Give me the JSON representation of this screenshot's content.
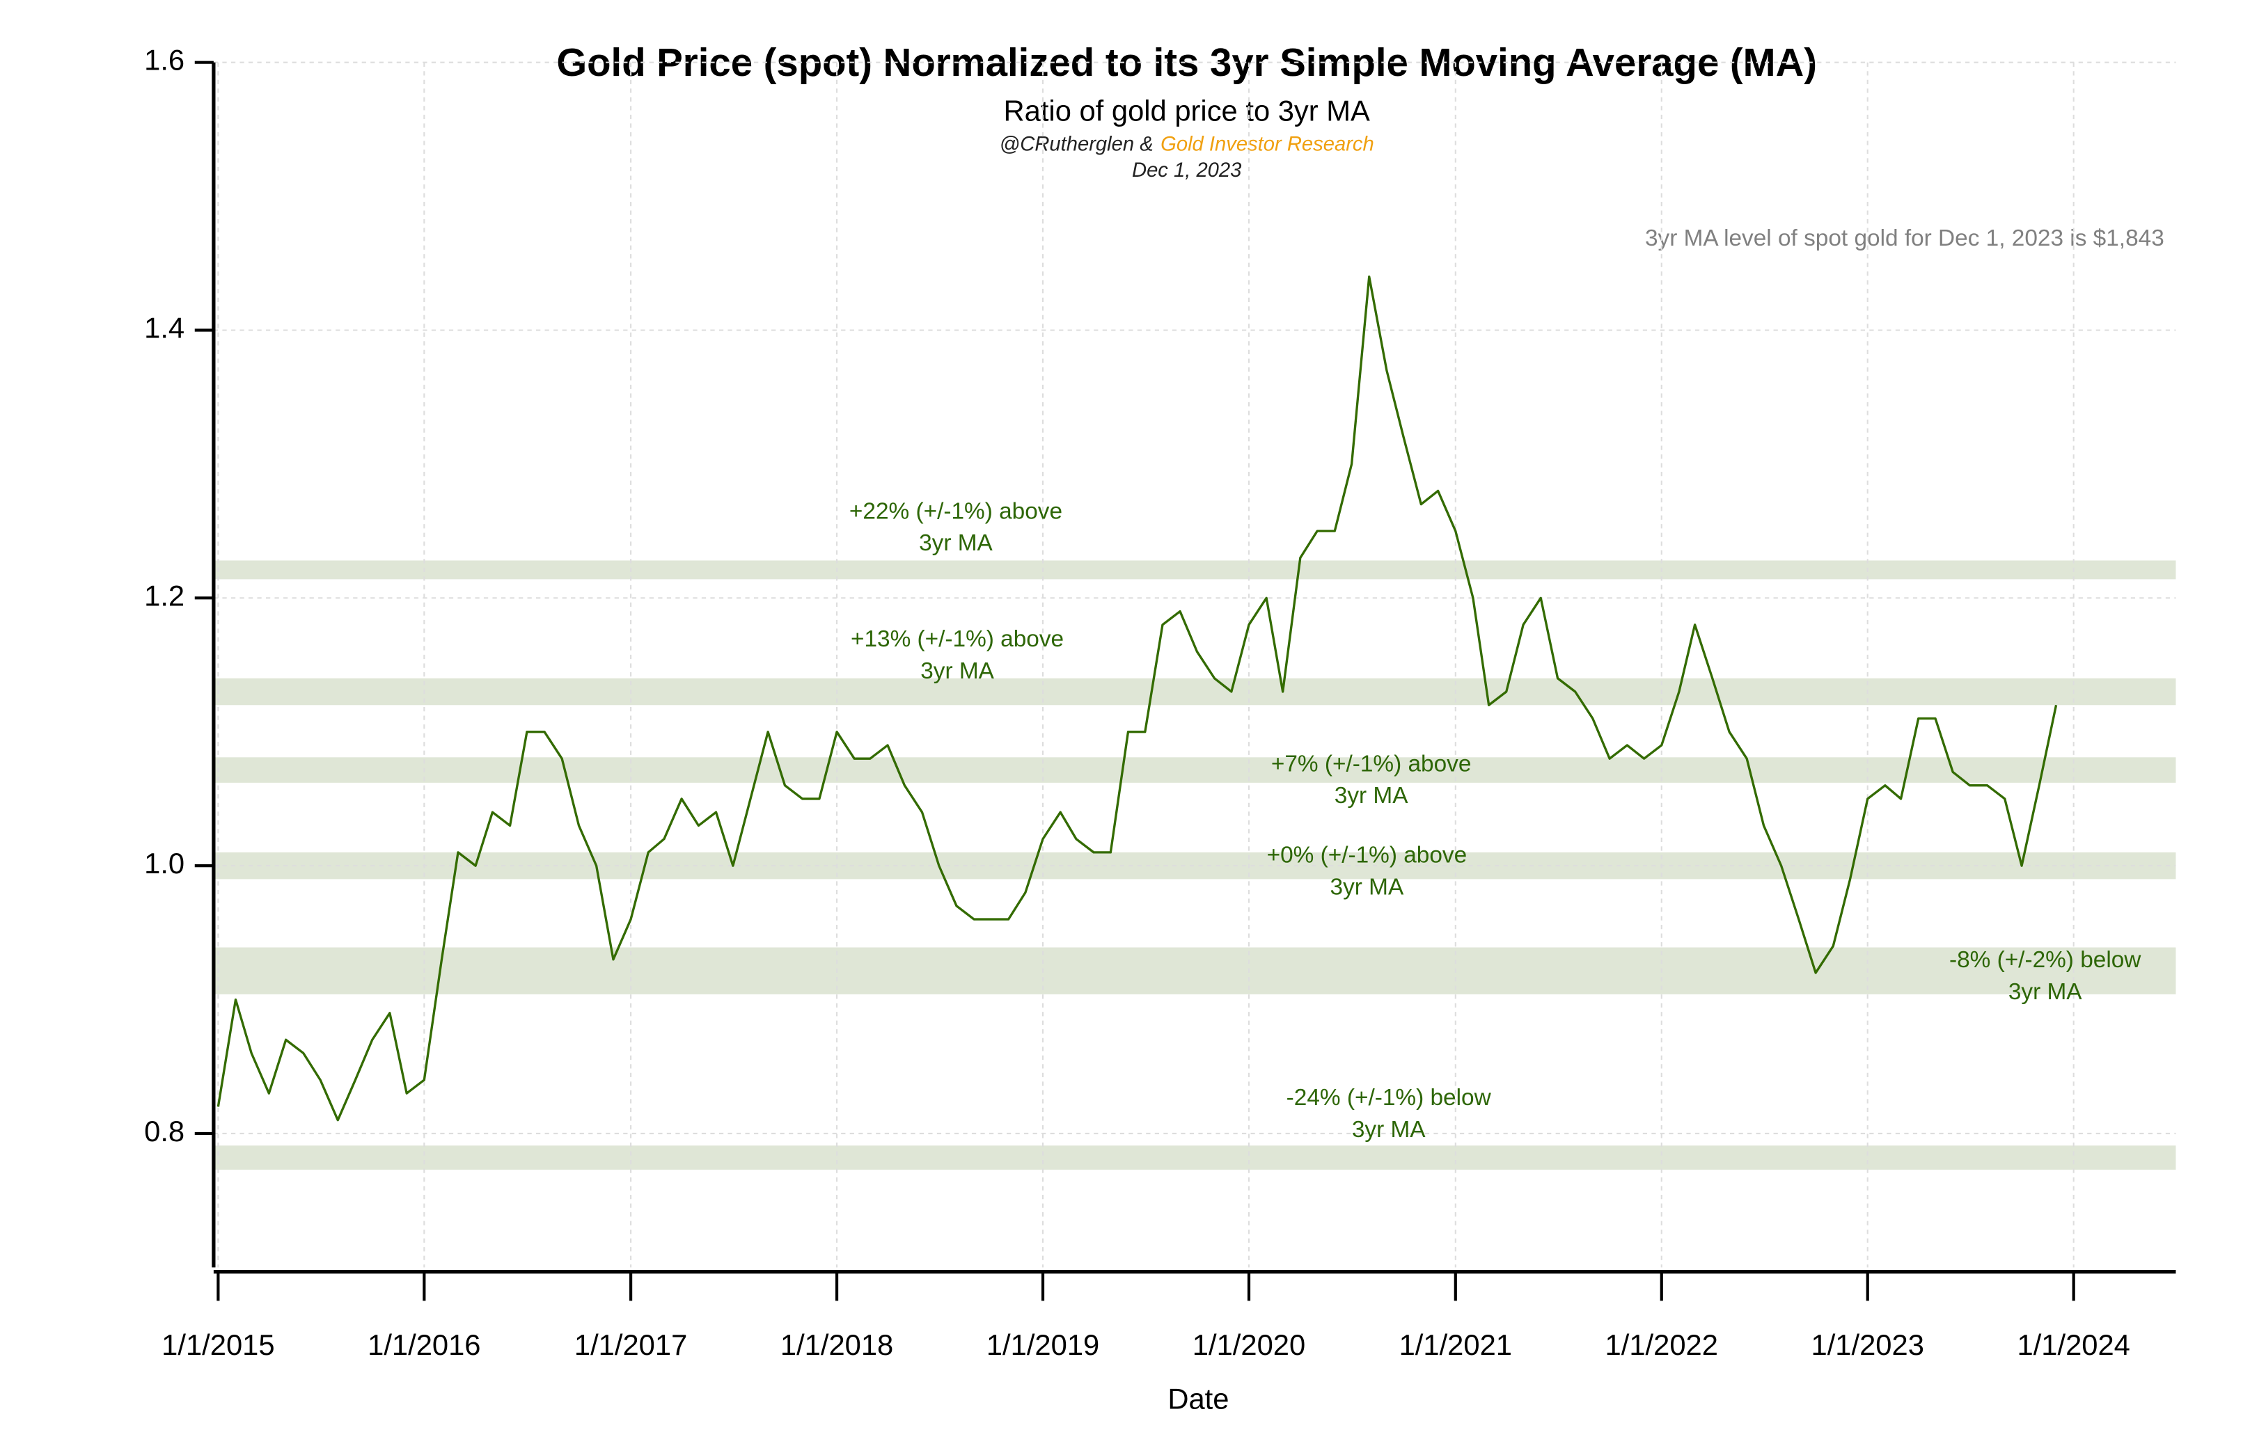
{
  "chart_data": {
    "type": "line",
    "title": "Gold Price (spot) Normalized to its 3yr Simple Moving Average (MA)",
    "subtitle": "Ratio of gold price to 3yr MA",
    "credit_author": "@CRutherglen &",
    "credit_org": "Gold Investor Research",
    "date": "Dec 1, 2023",
    "note": "3yr MA level of spot gold for Dec 1, 2023 is $1,843",
    "xlabel": "Date",
    "color": "#336b00",
    "grid": true,
    "ylim": [
      0.7,
      1.6
    ],
    "yticks": [
      0.8,
      {
        "value": 1,
        "label": "1.0"
      },
      1.2,
      1.4,
      1.6
    ],
    "xlim": [
      "2014-12-24",
      "2024-06-30"
    ],
    "xticks": [
      {
        "value": "2015-01-01",
        "label": "1/1/2015"
      },
      {
        "value": "2016-01-01",
        "label": "1/1/2016"
      },
      {
        "value": "2017-01-01",
        "label": "1/1/2017"
      },
      {
        "value": "2018-01-01",
        "label": "1/1/2018"
      },
      {
        "value": "2019-01-01",
        "label": "1/1/2019"
      },
      {
        "value": "2020-01-01",
        "label": "1/1/2020"
      },
      {
        "value": "2021-01-01",
        "label": "1/1/2021"
      },
      {
        "value": "2022-01-01",
        "label": "1/1/2022"
      },
      {
        "value": "2023-01-01",
        "label": "1/1/2023"
      },
      {
        "value": "2024-01-01",
        "label": "1/1/2024"
      }
    ],
    "bands": [
      {
        "range": [
          1.214,
          1.228
        ],
        "label": [
          "+22% (+/-1%) above",
          "3yr MA"
        ]
      },
      {
        "range": [
          1.12,
          1.14
        ],
        "label": [
          "+13% (+/-1%) above",
          "3yr MA"
        ]
      },
      {
        "range": [
          1.062,
          1.081
        ],
        "label": [
          "+7% (+/-1%) above",
          "3yr MA"
        ]
      },
      {
        "range": [
          0.99,
          1.01
        ],
        "label": [
          "+0% (+/-1%) above",
          "3yr MA"
        ]
      },
      {
        "range": [
          0.904,
          0.939
        ],
        "label": [
          "-8% (+/-2%) below",
          "3yr MA"
        ]
      },
      {
        "range": [
          0.773,
          0.791
        ],
        "label": [
          "-24% (+/-1%) below",
          "3yr MA"
        ]
      }
    ],
    "x": [
      "2015-01-01",
      "2015-02-01",
      "2015-03-01",
      "2015-04-01",
      "2015-05-01",
      "2015-06-01",
      "2015-07-01",
      "2015-08-01",
      "2015-09-01",
      "2015-10-01",
      "2015-11-01",
      "2015-12-01",
      "2016-01-01",
      "2016-02-01",
      "2016-03-01",
      "2016-04-01",
      "2016-05-01",
      "2016-06-01",
      "2016-07-01",
      "2016-08-01",
      "2016-09-01",
      "2016-10-01",
      "2016-11-01",
      "2016-12-01",
      "2017-01-01",
      "2017-02-01",
      "2017-03-01",
      "2017-04-01",
      "2017-05-01",
      "2017-06-01",
      "2017-07-01",
      "2017-08-01",
      "2017-09-01",
      "2017-10-01",
      "2017-11-01",
      "2017-12-01",
      "2018-01-01",
      "2018-02-01",
      "2018-03-01",
      "2018-04-01",
      "2018-05-01",
      "2018-06-01",
      "2018-07-01",
      "2018-08-01",
      "2018-09-01",
      "2018-10-01",
      "2018-11-01",
      "2018-12-01",
      "2019-01-01",
      "2019-02-01",
      "2019-03-01",
      "2019-04-01",
      "2019-05-01",
      "2019-06-01",
      "2019-07-01",
      "2019-08-01",
      "2019-09-01",
      "2019-10-01",
      "2019-11-01",
      "2019-12-01",
      "2020-01-01",
      "2020-02-01",
      "2020-03-01",
      "2020-04-01",
      "2020-05-01",
      "2020-06-01",
      "2020-07-01",
      "2020-08-01",
      "2020-09-01",
      "2020-10-01",
      "2020-11-01",
      "2020-12-01",
      "2021-01-01",
      "2021-02-01",
      "2021-03-01",
      "2021-04-01",
      "2021-05-01",
      "2021-06-01",
      "2021-07-01",
      "2021-08-01",
      "2021-09-01",
      "2021-10-01",
      "2021-11-01",
      "2021-12-01",
      "2022-01-01",
      "2022-02-01",
      "2022-03-01",
      "2022-04-01",
      "2022-05-01",
      "2022-06-01",
      "2022-07-01",
      "2022-08-01",
      "2022-09-01",
      "2022-10-01",
      "2022-11-01",
      "2022-12-01",
      "2023-01-01",
      "2023-02-01",
      "2023-03-01",
      "2023-04-01",
      "2023-05-01",
      "2023-06-01",
      "2023-07-01",
      "2023-08-01",
      "2023-09-01",
      "2023-10-01",
      "2023-11-01",
      "2023-12-01"
    ],
    "values": [
      0.82,
      0.9,
      0.86,
      0.83,
      0.87,
      0.86,
      0.84,
      0.81,
      0.84,
      0.87,
      0.89,
      0.83,
      0.84,
      0.93,
      1.01,
      1.0,
      1.04,
      1.03,
      1.1,
      1.1,
      1.08,
      1.03,
      1.0,
      0.93,
      0.96,
      1.01,
      1.02,
      1.05,
      1.03,
      1.04,
      1.0,
      1.05,
      1.1,
      1.06,
      1.05,
      1.05,
      1.1,
      1.08,
      1.08,
      1.09,
      1.06,
      1.04,
      1.0,
      0.97,
      0.96,
      0.96,
      0.96,
      0.98,
      1.02,
      1.04,
      1.02,
      1.01,
      1.01,
      1.1,
      1.1,
      1.18,
      1.19,
      1.16,
      1.14,
      1.13,
      1.18,
      1.2,
      1.13,
      1.23,
      1.25,
      1.25,
      1.3,
      1.44,
      1.37,
      1.32,
      1.27,
      1.28,
      1.25,
      1.2,
      1.12,
      1.13,
      1.18,
      1.2,
      1.14,
      1.13,
      1.11,
      1.08,
      1.09,
      1.08,
      1.09,
      1.13,
      1.18,
      1.14,
      1.1,
      1.08,
      1.03,
      1.0,
      0.96,
      0.92,
      0.94,
      0.99,
      1.05,
      1.06,
      1.05,
      1.11,
      1.11,
      1.07,
      1.06,
      1.06,
      1.05,
      1.0,
      1.06,
      1.12
    ]
  }
}
